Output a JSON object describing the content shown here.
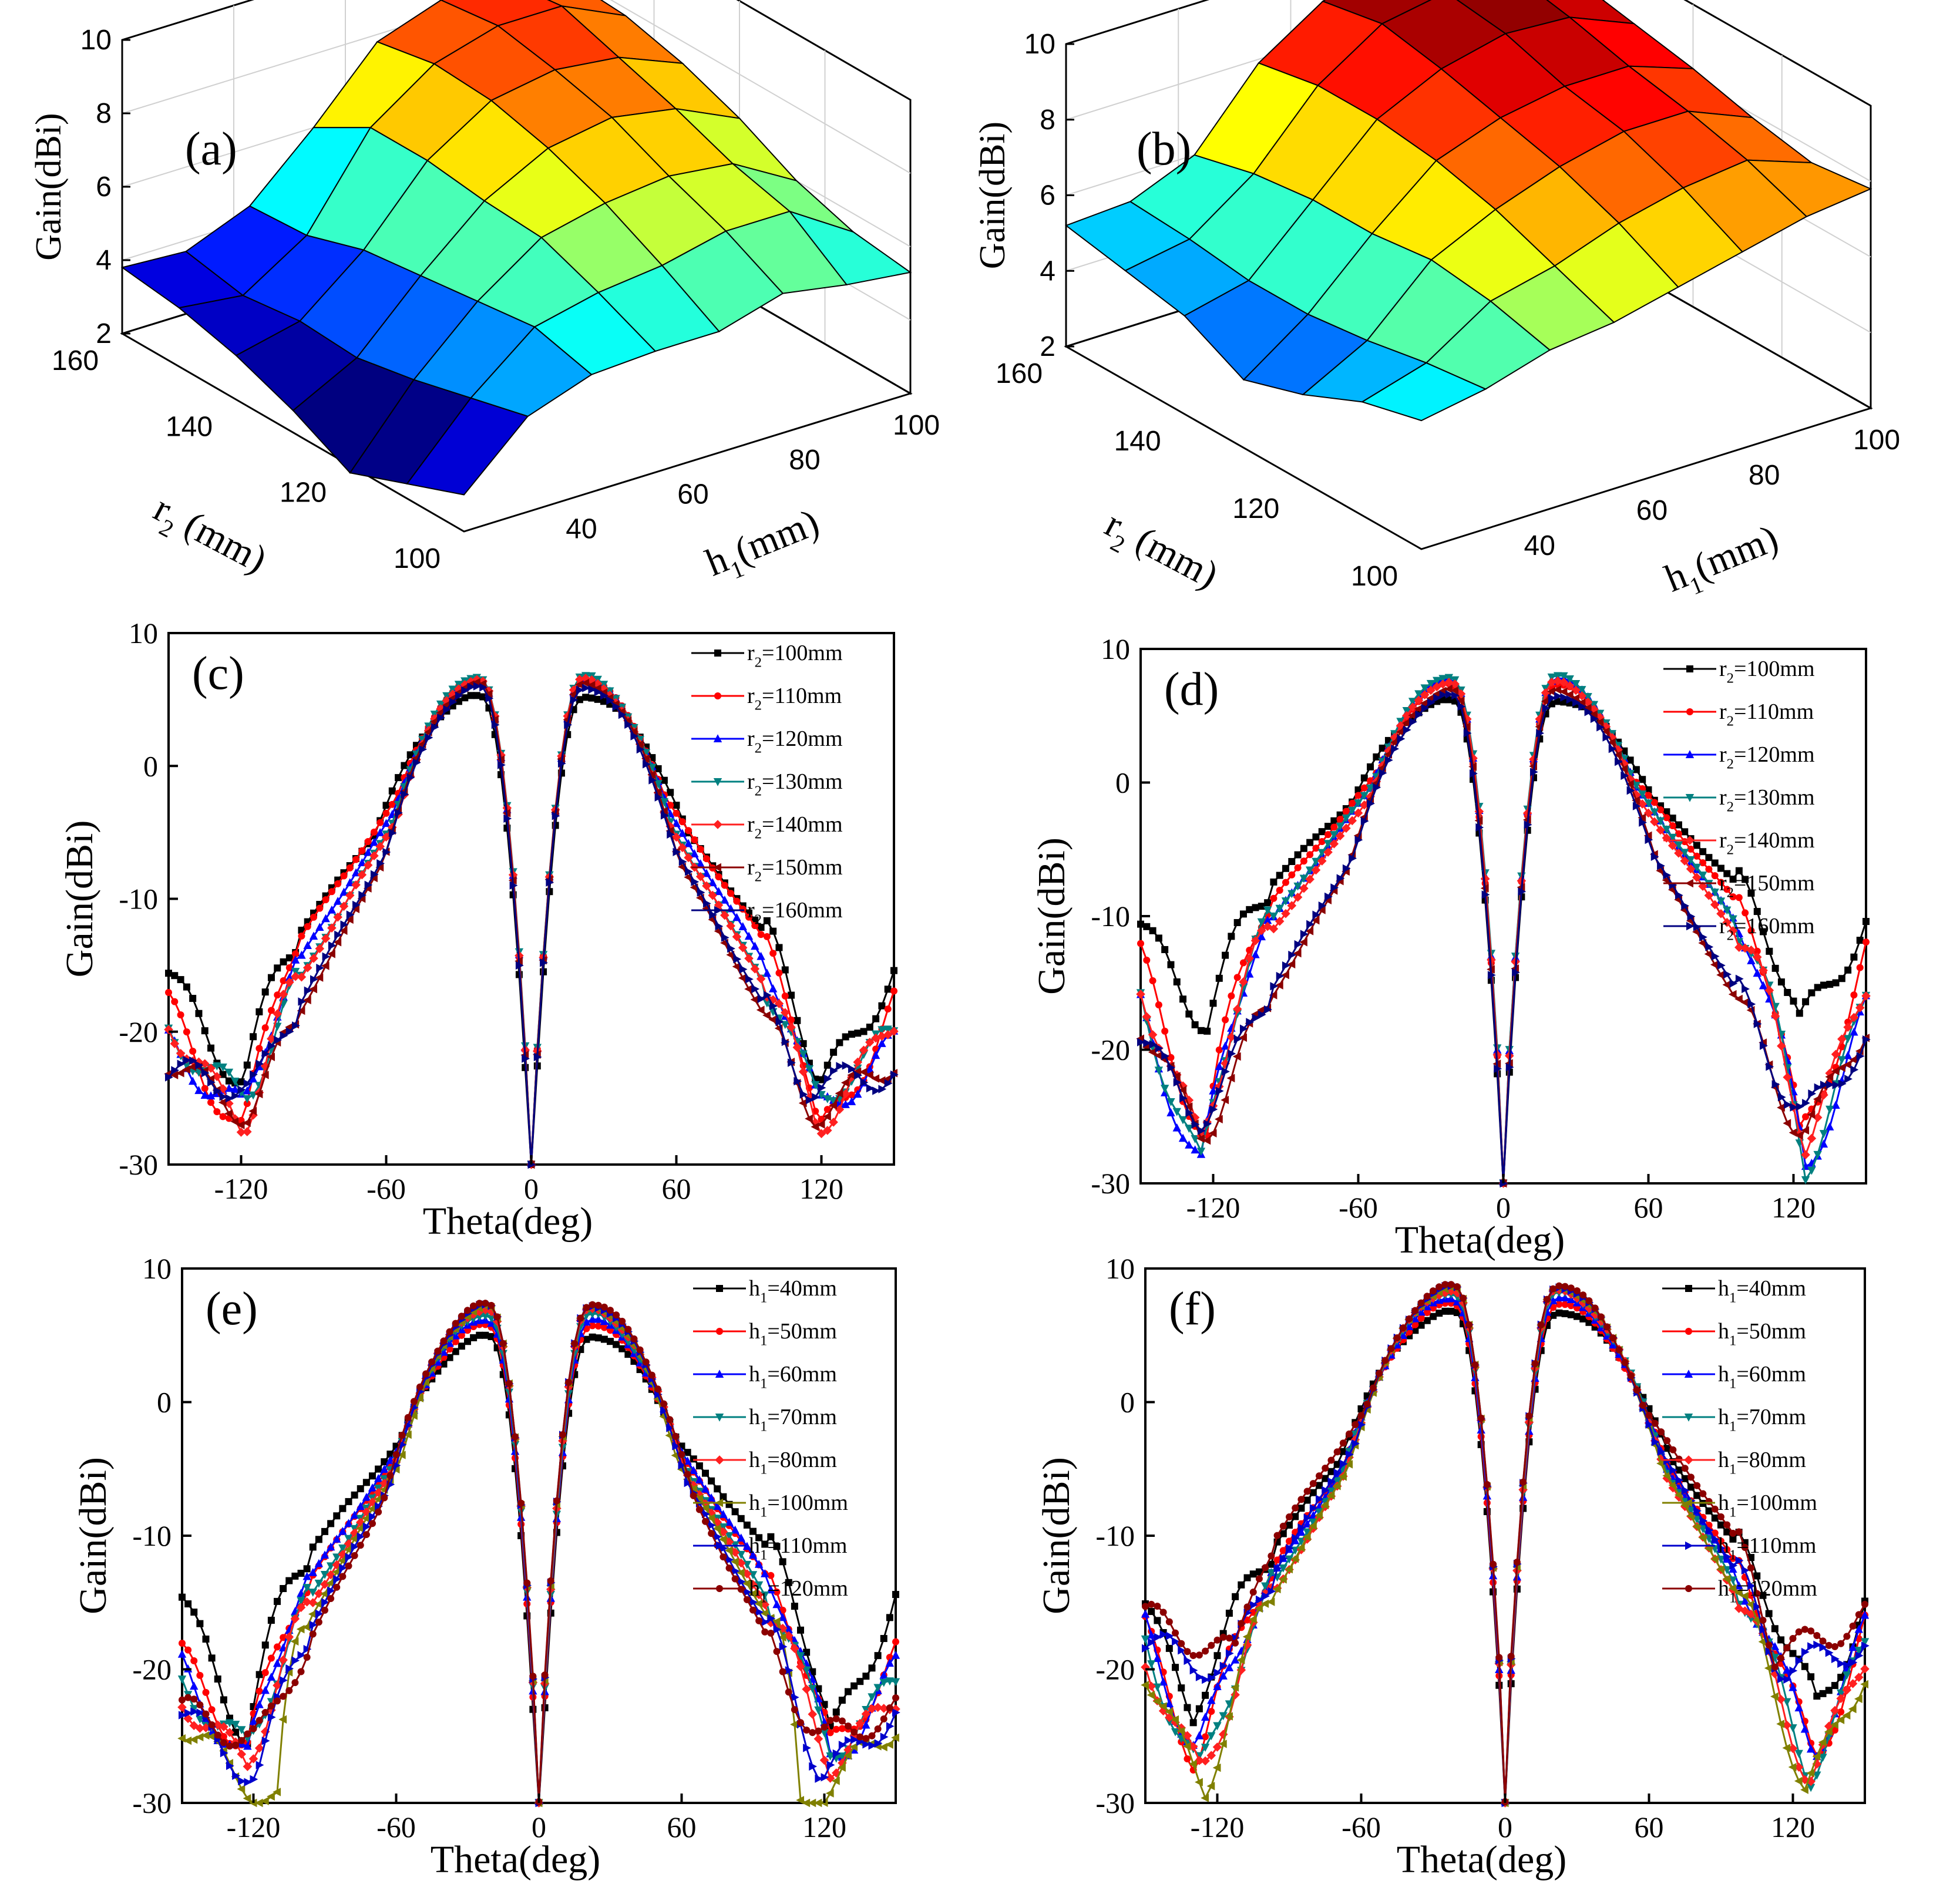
{
  "figure": "antenna gain parametric study",
  "colors": {
    "black": "#000000",
    "red": "#ff0000",
    "blue": "#0000ff",
    "teal": "#008080",
    "red2": "#ff2020",
    "darkred": "#8b0000",
    "navy": "#000080",
    "olive": "#808000",
    "blue2": "#0000cc"
  },
  "chart_data": [
    {
      "id": "a",
      "type": "surface3d",
      "label": "(a)",
      "zlabel": "Gain(dBi)",
      "xlabel_main": "r",
      "xlabel_sub": "2",
      "xlabel_tail": " (mm)",
      "ylabel_main": "h",
      "ylabel_sub": "1",
      "ylabel_tail": "(mm)",
      "r2": [
        100,
        110,
        120,
        130,
        140,
        150,
        160
      ],
      "h1": [
        30,
        40,
        50,
        60,
        70,
        80,
        90,
        100
      ],
      "zlim": [
        2,
        10
      ],
      "zticks": [
        "2",
        "4",
        "6",
        "8",
        "10"
      ],
      "r2ticks": [
        "100",
        "120",
        "140",
        "160"
      ],
      "h1ticks": [
        "40",
        "60",
        "80",
        "100"
      ],
      "gain": [
        [
          3.0,
          4.6,
          5.2,
          5.3,
          5.3,
          5.8,
          5.5,
          5.3
        ],
        [
          2.4,
          4.2,
          5.6,
          6.0,
          6.2,
          6.6,
          6.6,
          5.5
        ],
        [
          1.8,
          3.8,
          5.4,
          6.6,
          7.0,
          7.2,
          7.0,
          6.0
        ],
        [
          2.6,
          3.5,
          5.2,
          6.7,
          7.6,
          7.9,
          7.6,
          6.8
        ],
        [
          3.2,
          3.6,
          5.0,
          6.9,
          8.0,
          8.3,
          8.1,
          7.4
        ],
        [
          3.6,
          3.4,
          4.5,
          6.9,
          8.1,
          8.6,
          8.6,
          7.8
        ],
        [
          3.8,
          3.7,
          4.4,
          6.0,
          7.8,
          8.4,
          8.4,
          7.9
        ]
      ]
    },
    {
      "id": "b",
      "type": "surface3d",
      "label": "(b)",
      "zlabel": "Gain(dBi)",
      "xlabel_main": "r",
      "xlabel_sub": "2",
      "xlabel_tail": " (mm)",
      "ylabel_main": "h",
      "ylabel_sub": "1",
      "ylabel_tail": "(mm)",
      "r2": [
        100,
        110,
        120,
        130,
        140,
        150,
        160
      ],
      "h1": [
        30,
        40,
        50,
        60,
        70,
        80,
        90,
        100
      ],
      "zlim": [
        2,
        10
      ],
      "zticks": [
        "2",
        "4",
        "6",
        "8",
        "10"
      ],
      "r2ticks": [
        "100",
        "120",
        "140",
        "160"
      ],
      "h1ticks": [
        "40",
        "60",
        "80",
        "100"
      ],
      "gain": [
        [
          5.4,
          5.7,
          6.2,
          6.4,
          6.8,
          7.2,
          7.6,
          7.8
        ],
        [
          5.0,
          5.5,
          6.6,
          7.0,
          7.6,
          8.0,
          8.2,
          7.6
        ],
        [
          4.3,
          5.2,
          6.8,
          7.6,
          8.2,
          8.6,
          8.6,
          7.9
        ],
        [
          3.8,
          5.0,
          6.6,
          8.0,
          8.6,
          8.9,
          8.9,
          8.3
        ],
        [
          4.6,
          5.0,
          6.6,
          8.2,
          9.0,
          9.4,
          9.3,
          8.6
        ],
        [
          4.9,
          5.2,
          6.4,
          8.2,
          9.3,
          9.6,
          9.6,
          8.9
        ],
        [
          5.2,
          5.3,
          6.0,
          7.9,
          9.0,
          9.6,
          9.6,
          9.0
        ]
      ]
    },
    {
      "id": "c",
      "type": "line",
      "label": "(c)",
      "xlabel": "Theta(deg)",
      "ylabel": "Gain(dBi)",
      "xlim": [
        -150,
        150
      ],
      "ylim": [
        -30,
        10
      ],
      "xticks": [
        -120,
        -60,
        0,
        60,
        120
      ],
      "yticks": [
        10,
        0,
        -10,
        -20,
        -30
      ],
      "series": [
        {
          "name_main": "r",
          "name_sub": "2",
          "name_tail": "=100mm",
          "color": "#000000",
          "marker": "square",
          "peak": 5.3,
          "width": 47,
          "floor": -17,
          "tail": -15.5,
          "nul": -24,
          "nulx": 118
        },
        {
          "name_main": "r",
          "name_sub": "2",
          "name_tail": "=110mm",
          "color": "#ff0000",
          "marker": "circle",
          "peak": 6.5,
          "width": 40,
          "floor": -18,
          "tail": -18,
          "nul": -28,
          "nulx": 118
        },
        {
          "name_main": "r",
          "name_sub": "2",
          "name_tail": "=120mm",
          "color": "#0000ff",
          "marker": "triup",
          "peak": 6.6,
          "width": 39,
          "floor": -20,
          "tail": -21,
          "nul": -26,
          "nulx": 118
        },
        {
          "name_main": "r",
          "name_sub": "2",
          "name_tail": "=130mm",
          "color": "#008080",
          "marker": "tridown",
          "peak": 6.8,
          "width": 38,
          "floor": -22,
          "tail": -20,
          "nul": -25,
          "nulx": 118
        },
        {
          "name_main": "r",
          "name_sub": "2",
          "name_tail": "=140mm",
          "color": "#ff2020",
          "marker": "diamond",
          "peak": 6.6,
          "width": 37,
          "floor": -22,
          "tail": -19,
          "nul": -27,
          "nulx": 118
        },
        {
          "name_main": "r",
          "name_sub": "2",
          "name_tail": "=150mm",
          "color": "#8b0000",
          "marker": "trileft",
          "peak": 6.3,
          "width": 38,
          "floor": -25,
          "tail": -22,
          "nul": -26,
          "nulx": 118
        },
        {
          "name_main": "r",
          "name_sub": "2",
          "name_tail": "=160mm",
          "color": "#000080",
          "marker": "triright",
          "peak": 6.0,
          "width": 38,
          "floor": -24,
          "tail": -23,
          "nul": -24,
          "nulx": 118
        }
      ]
    },
    {
      "id": "d",
      "type": "line",
      "label": "(d)",
      "xlabel": "Theta(deg)",
      "ylabel": "Gain(dBi)",
      "xlim": [
        -150,
        150
      ],
      "ylim": [
        -30,
        10
      ],
      "xticks": [
        -120,
        0,
        60,
        120
      ],
      "xticks_extra": [
        "-60"
      ],
      "yticks": [
        10,
        0,
        -10,
        -20,
        -30
      ],
      "series": [
        {
          "name_main": "r",
          "name_sub": "2",
          "name_tail": "=100mm",
          "color": "#000000",
          "marker": "square",
          "peak": 6.2,
          "width": 52,
          "floor": -11,
          "tail": -10.5,
          "nul": -18,
          "nulx": 122
        },
        {
          "name_main": "r",
          "name_sub": "2",
          "name_tail": "=110mm",
          "color": "#ff0000",
          "marker": "circle",
          "peak": 7.4,
          "width": 42,
          "floor": -13,
          "tail": -13,
          "nul": -27,
          "nulx": 122
        },
        {
          "name_main": "r",
          "name_sub": "2",
          "name_tail": "=120mm",
          "color": "#0000ff",
          "marker": "triup",
          "peak": 7.8,
          "width": 41,
          "floor": -15,
          "tail": -17,
          "nul": -29,
          "nulx": 124
        },
        {
          "name_main": "r",
          "name_sub": "2",
          "name_tail": "=130mm",
          "color": "#008080",
          "marker": "tridown",
          "peak": 8.0,
          "width": 40,
          "floor": -15,
          "tail": -16,
          "nul": -29,
          "nulx": 124
        },
        {
          "name_main": "r",
          "name_sub": "2",
          "name_tail": "=140mm",
          "color": "#ff2020",
          "marker": "diamond",
          "peak": 7.6,
          "width": 40,
          "floor": -16,
          "tail": -15,
          "nul": -27,
          "nulx": 124
        },
        {
          "name_main": "r",
          "name_sub": "2",
          "name_tail": "=150mm",
          "color": "#8b0000",
          "marker": "trileft",
          "peak": 7.0,
          "width": 41,
          "floor": -22,
          "tail": -18,
          "nul": -26,
          "nulx": 124
        },
        {
          "name_main": "r",
          "name_sub": "2",
          "name_tail": "=160mm",
          "color": "#000080",
          "marker": "triright",
          "peak": 6.6,
          "width": 41,
          "floor": -21,
          "tail": -19,
          "nul": -25,
          "nulx": 124
        }
      ]
    },
    {
      "id": "e",
      "type": "line",
      "label": "(e)",
      "xlabel": "Theta(deg)",
      "ylabel": "Gain(dBi)",
      "xlim": [
        -150,
        150
      ],
      "ylim": [
        -30,
        10
      ],
      "xticks": [
        -120,
        -60,
        0,
        60,
        120
      ],
      "yticks": [
        10,
        0,
        -10,
        -20,
        -30
      ],
      "series": [
        {
          "name_main": "h",
          "name_sub": "1",
          "name_tail": "=40mm",
          "color": "#000000",
          "marker": "square",
          "peak": 5.0,
          "width": 46,
          "floor": -15,
          "tail": -14.5,
          "nul": -25,
          "nulx": 122
        },
        {
          "name_main": "h",
          "name_sub": "1",
          "name_tail": "=50mm",
          "color": "#ff0000",
          "marker": "circle",
          "peak": 5.8,
          "width": 43,
          "floor": -18,
          "tail": -19,
          "nul": -26,
          "nulx": 122
        },
        {
          "name_main": "h",
          "name_sub": "1",
          "name_tail": "=60mm",
          "color": "#0000ff",
          "marker": "triup",
          "peak": 6.2,
          "width": 42,
          "floor": -18,
          "tail": -20,
          "nul": -27,
          "nulx": 122
        },
        {
          "name_main": "h",
          "name_sub": "1",
          "name_tail": "=70mm",
          "color": "#008080",
          "marker": "tridown",
          "peak": 6.6,
          "width": 41,
          "floor": -20,
          "tail": -21,
          "nul": -26,
          "nulx": 122
        },
        {
          "name_main": "h",
          "name_sub": "1",
          "name_tail": "=80mm",
          "color": "#ff2020",
          "marker": "diamond",
          "peak": 7.0,
          "width": 40,
          "floor": -21,
          "tail": -22,
          "nul": -27,
          "nulx": 122
        },
        {
          "name_main": "h",
          "name_sub": "1",
          "name_tail": "=100mm",
          "color": "#808000",
          "marker": "trileft",
          "peak": 7.2,
          "width": 38,
          "floor": -22,
          "tail": -24,
          "nul": -30,
          "nulx": 110
        },
        {
          "name_main": "h",
          "name_sub": "1",
          "name_tail": "=110mm",
          "color": "#0000cc",
          "marker": "triright",
          "peak": 7.3,
          "width": 39,
          "floor": -23,
          "tail": -23,
          "nul": -28,
          "nulx": 118
        },
        {
          "name_main": "h",
          "name_sub": "1",
          "name_tail": "=120mm",
          "color": "#8b0000",
          "marker": "circle",
          "peak": 7.4,
          "width": 40,
          "floor": -24,
          "tail": -23,
          "nul": -25,
          "nulx": 122
        }
      ]
    },
    {
      "id": "f",
      "type": "line",
      "label": "(f)",
      "xlabel": "Theta(deg)",
      "ylabel": "Gain(dBi)",
      "xlim": [
        -150,
        150
      ],
      "ylim": [
        -30,
        10
      ],
      "xticks": [
        -120,
        -60,
        0,
        60,
        120
      ],
      "yticks": [
        10,
        0,
        -10,
        -20,
        -30
      ],
      "ytick_top": "10",
      "series": [
        {
          "name_main": "h",
          "name_sub": "1",
          "name_tail": "=40mm",
          "color": "#000000",
          "marker": "square",
          "peak": 6.8,
          "width": 50,
          "floor": -15,
          "tail": -15,
          "nul": -23,
          "nulx": 130
        },
        {
          "name_main": "h",
          "name_sub": "1",
          "name_tail": "=50mm",
          "color": "#ff0000",
          "marker": "circle",
          "peak": 7.4,
          "width": 46,
          "floor": -17,
          "tail": -17,
          "nul": -27,
          "nulx": 128
        },
        {
          "name_main": "h",
          "name_sub": "1",
          "name_tail": "=60mm",
          "color": "#0000ff",
          "marker": "triup",
          "peak": 7.8,
          "width": 45,
          "floor": -18,
          "tail": -17,
          "nul": -26,
          "nulx": 128
        },
        {
          "name_main": "h",
          "name_sub": "1",
          "name_tail": "=70mm",
          "color": "#008080",
          "marker": "tridown",
          "peak": 8.2,
          "width": 44,
          "floor": -19,
          "tail": -18,
          "nul": -28,
          "nulx": 126
        },
        {
          "name_main": "h",
          "name_sub": "1",
          "name_tail": "=80mm",
          "color": "#ff2020",
          "marker": "diamond",
          "peak": 8.4,
          "width": 43,
          "floor": -20,
          "tail": -19,
          "nul": -28,
          "nulx": 126
        },
        {
          "name_main": "h",
          "name_sub": "1",
          "name_tail": "=100mm",
          "color": "#808000",
          "marker": "trileft",
          "peak": 8.6,
          "width": 42,
          "floor": -20,
          "tail": -20,
          "nul": -29,
          "nulx": 124
        },
        {
          "name_main": "h",
          "name_sub": "1",
          "name_tail": "=110mm",
          "color": "#0000cc",
          "marker": "triright",
          "peak": 8.7,
          "width": 42,
          "floor": -18,
          "tail": -18,
          "nul": -20,
          "nulx": 116
        },
        {
          "name_main": "h",
          "name_sub": "1",
          "name_tail": "=120mm",
          "color": "#8b0000",
          "marker": "circle",
          "peak": 8.8,
          "width": 42,
          "floor": -15,
          "tail": -16,
          "nul": -19,
          "nulx": 112
        }
      ]
    }
  ]
}
